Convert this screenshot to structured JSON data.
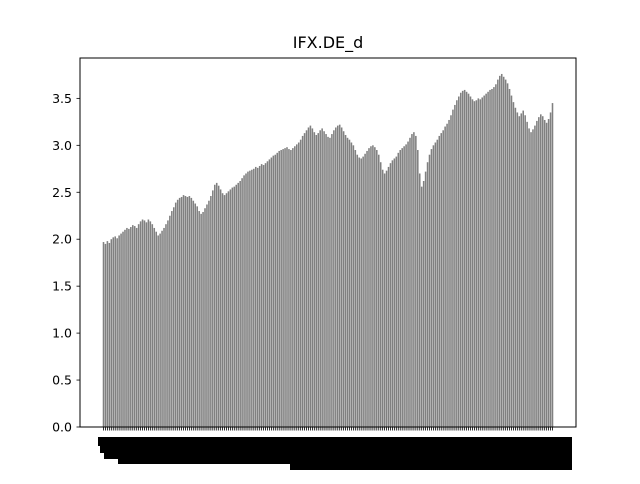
{
  "chart_data": {
    "type": "bar",
    "title": "IFX.DE_d",
    "xlabel": "",
    "ylabel": "",
    "ylim": [
      0,
      3.93
    ],
    "yticks": [
      0.0,
      0.5,
      1.0,
      1.5,
      2.0,
      2.5,
      3.0,
      3.5
    ],
    "ytick_labels": [
      "0.0",
      "0.5",
      "1.0",
      "1.5",
      "2.0",
      "2.5",
      "3.0",
      "3.5"
    ],
    "grid": false,
    "legend": "none",
    "bar_color": "#808080",
    "x_tick_labels_legible": false,
    "values": [
      1.97,
      1.95,
      1.98,
      1.96,
      2.0,
      2.02,
      2.03,
      2.01,
      2.04,
      2.06,
      2.08,
      2.1,
      2.12,
      2.11,
      2.13,
      2.15,
      2.14,
      2.12,
      2.16,
      2.19,
      2.21,
      2.2,
      2.18,
      2.21,
      2.19,
      2.16,
      2.12,
      2.08,
      2.04,
      2.06,
      2.09,
      2.12,
      2.16,
      2.2,
      2.25,
      2.3,
      2.34,
      2.39,
      2.42,
      2.44,
      2.45,
      2.47,
      2.46,
      2.45,
      2.46,
      2.44,
      2.41,
      2.38,
      2.35,
      2.3,
      2.27,
      2.29,
      2.33,
      2.37,
      2.41,
      2.46,
      2.52,
      2.58,
      2.6,
      2.57,
      2.53,
      2.49,
      2.47,
      2.49,
      2.51,
      2.53,
      2.55,
      2.56,
      2.58,
      2.6,
      2.62,
      2.65,
      2.68,
      2.7,
      2.72,
      2.73,
      2.74,
      2.75,
      2.77,
      2.76,
      2.78,
      2.8,
      2.79,
      2.81,
      2.83,
      2.85,
      2.87,
      2.89,
      2.9,
      2.92,
      2.94,
      2.95,
      2.96,
      2.97,
      2.98,
      2.96,
      2.95,
      2.97,
      2.99,
      3.01,
      3.03,
      3.06,
      3.1,
      3.13,
      3.16,
      3.19,
      3.21,
      3.18,
      3.14,
      3.11,
      3.13,
      3.16,
      3.18,
      3.15,
      3.12,
      3.09,
      3.08,
      3.12,
      3.16,
      3.19,
      3.21,
      3.22,
      3.19,
      3.15,
      3.11,
      3.08,
      3.06,
      3.03,
      3.0,
      2.95,
      2.9,
      2.87,
      2.86,
      2.88,
      2.91,
      2.94,
      2.97,
      2.99,
      3.0,
      2.98,
      2.95,
      2.9,
      2.82,
      2.74,
      2.7,
      2.73,
      2.77,
      2.81,
      2.84,
      2.86,
      2.88,
      2.92,
      2.95,
      2.97,
      2.99,
      3.01,
      3.04,
      3.08,
      3.12,
      3.14,
      3.1,
      2.95,
      2.7,
      2.56,
      2.62,
      2.72,
      2.82,
      2.9,
      2.96,
      3.0,
      3.03,
      3.06,
      3.1,
      3.13,
      3.16,
      3.2,
      3.23,
      3.27,
      3.32,
      3.38,
      3.43,
      3.48,
      3.52,
      3.56,
      3.58,
      3.59,
      3.57,
      3.55,
      3.52,
      3.49,
      3.47,
      3.48,
      3.5,
      3.49,
      3.51,
      3.53,
      3.55,
      3.57,
      3.59,
      3.6,
      3.62,
      3.65,
      3.7,
      3.74,
      3.76,
      3.73,
      3.7,
      3.66,
      3.6,
      3.53,
      3.46,
      3.4,
      3.35,
      3.31,
      3.34,
      3.37,
      3.32,
      3.25,
      3.18,
      3.14,
      3.17,
      3.21,
      3.26,
      3.3,
      3.33,
      3.31,
      3.27,
      3.24,
      3.28,
      3.35,
      3.45
    ]
  }
}
